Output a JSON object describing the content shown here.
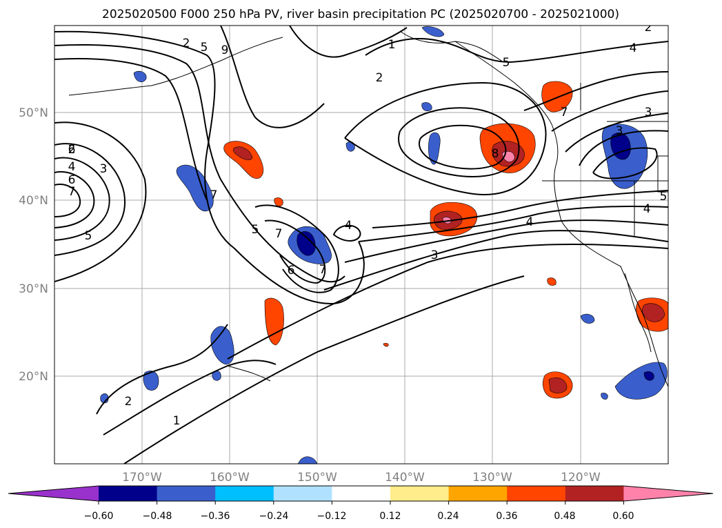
{
  "title": "2025020500 F000 250 hPa PV, river basin precipitation PC (2025020700 - 2025021000)",
  "lat_labels": [
    "50°N",
    "40°N",
    "30°N",
    "20°N"
  ],
  "lon_labels": [
    "170°W",
    "160°W",
    "150°W",
    "140°W",
    "130°W",
    "120°W"
  ],
  "colorbar": {
    "ticks": [
      "−0.60",
      "−0.48",
      "−0.36",
      "−0.24",
      "−0.12",
      "0.12",
      "0.24",
      "0.36",
      "0.48",
      "0.60"
    ],
    "colors": [
      "#9932cc",
      "#00008b",
      "#3a5fcd",
      "#00bfff",
      "#b0e2ff",
      "#ffffff",
      "#ffec8b",
      "#ffa500",
      "#ff4500",
      "#b22222",
      "#ff82ab"
    ]
  },
  "contour_labels": [
    "2",
    "5",
    "9",
    "6",
    "1",
    "2",
    "5",
    "4",
    "2",
    "3",
    "2",
    "4",
    "6",
    "7",
    "5",
    "3",
    "7",
    "7",
    "8",
    "7",
    "5",
    "7",
    "4",
    "6",
    "3",
    "4",
    "4",
    "1",
    "2",
    "3",
    "5"
  ]
}
